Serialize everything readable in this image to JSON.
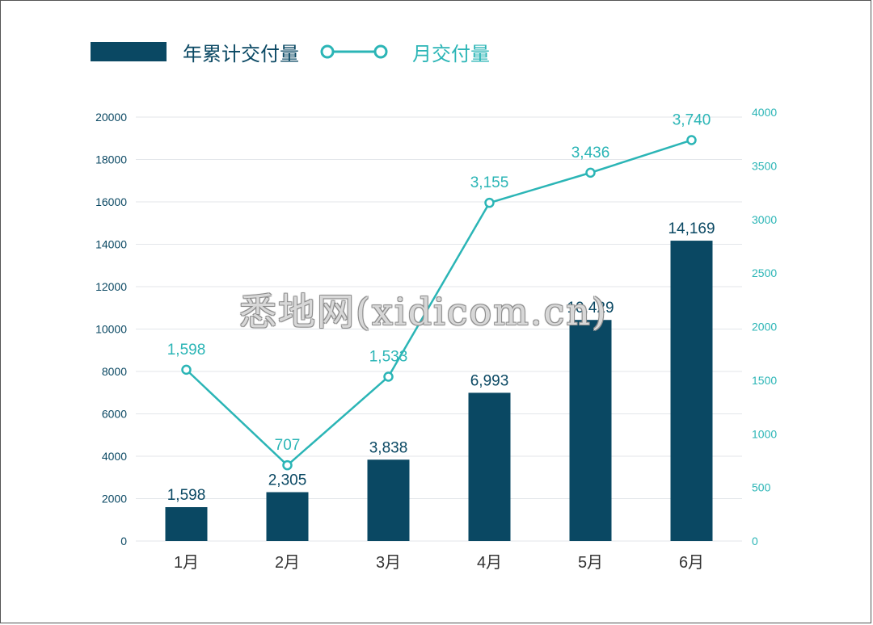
{
  "legend": {
    "bar_label": "年累计交付量",
    "line_label": "月交付量"
  },
  "watermark": "悉地网(xidicom.cn)",
  "colors": {
    "bar": "#0a4863",
    "line": "#2bb5b6",
    "grid": "#e3e6ea",
    "left_axis_text": "#0a4863",
    "right_axis_text": "#2bb5b6"
  },
  "chart_data": {
    "type": "bar",
    "categories": [
      "1月",
      "2月",
      "3月",
      "4月",
      "5月",
      "6月"
    ],
    "series": [
      {
        "name": "年累计交付量",
        "type": "bar",
        "axis": "left",
        "values": [
          1598,
          2305,
          3838,
          6993,
          10429,
          14169
        ],
        "labels": [
          "1,598",
          "2,305",
          "3,838",
          "6,993",
          "10,429",
          "14,169"
        ]
      },
      {
        "name": "月交付量",
        "type": "line",
        "axis": "right",
        "values": [
          1598,
          707,
          1533,
          3155,
          3436,
          3740
        ],
        "labels": [
          "1,598",
          "707",
          "1,533",
          "3,155",
          "3,436",
          "3,740"
        ]
      }
    ],
    "left_axis": {
      "ylim": [
        0,
        20000
      ],
      "ticks": [
        "0",
        "2000",
        "4000",
        "6000",
        "8000",
        "10000",
        "12000",
        "14000",
        "16000",
        "18000",
        "20000"
      ]
    },
    "right_axis": {
      "ylim": [
        0,
        4000
      ],
      "ticks": [
        "0",
        "500",
        "1000",
        "1500",
        "2000",
        "2500",
        "3000",
        "3500",
        "4000"
      ]
    },
    "grid": true,
    "legend_position": "top-left"
  }
}
